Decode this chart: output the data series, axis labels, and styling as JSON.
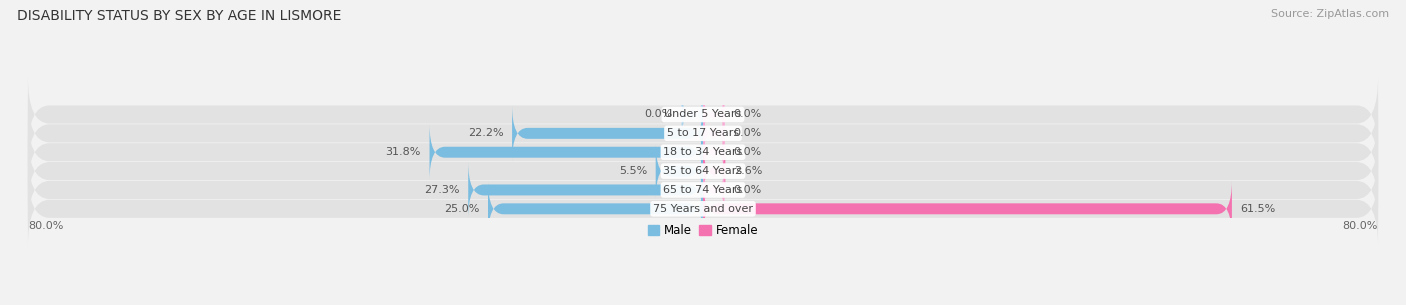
{
  "title": "DISABILITY STATUS BY SEX BY AGE IN LISMORE",
  "source": "Source: ZipAtlas.com",
  "categories": [
    "Under 5 Years",
    "5 to 17 Years",
    "18 to 34 Years",
    "35 to 64 Years",
    "65 to 74 Years",
    "75 Years and over"
  ],
  "male_values": [
    0.0,
    22.2,
    31.8,
    5.5,
    27.3,
    25.0
  ],
  "female_values": [
    0.0,
    0.0,
    0.0,
    2.6,
    0.0,
    61.5
  ],
  "male_color": "#7bbde0",
  "female_color": "#f472b0",
  "male_color_light": "#aed4ec",
  "female_color_light": "#f9a8d4",
  "axis_max": 80.0,
  "x_axis_label": "80.0%",
  "background_color": "#f2f2f2",
  "row_bg_color": "#e2e2e2",
  "title_fontsize": 10,
  "source_fontsize": 8,
  "label_fontsize": 8,
  "bar_height": 0.58,
  "fig_width": 14.06,
  "fig_height": 3.05
}
